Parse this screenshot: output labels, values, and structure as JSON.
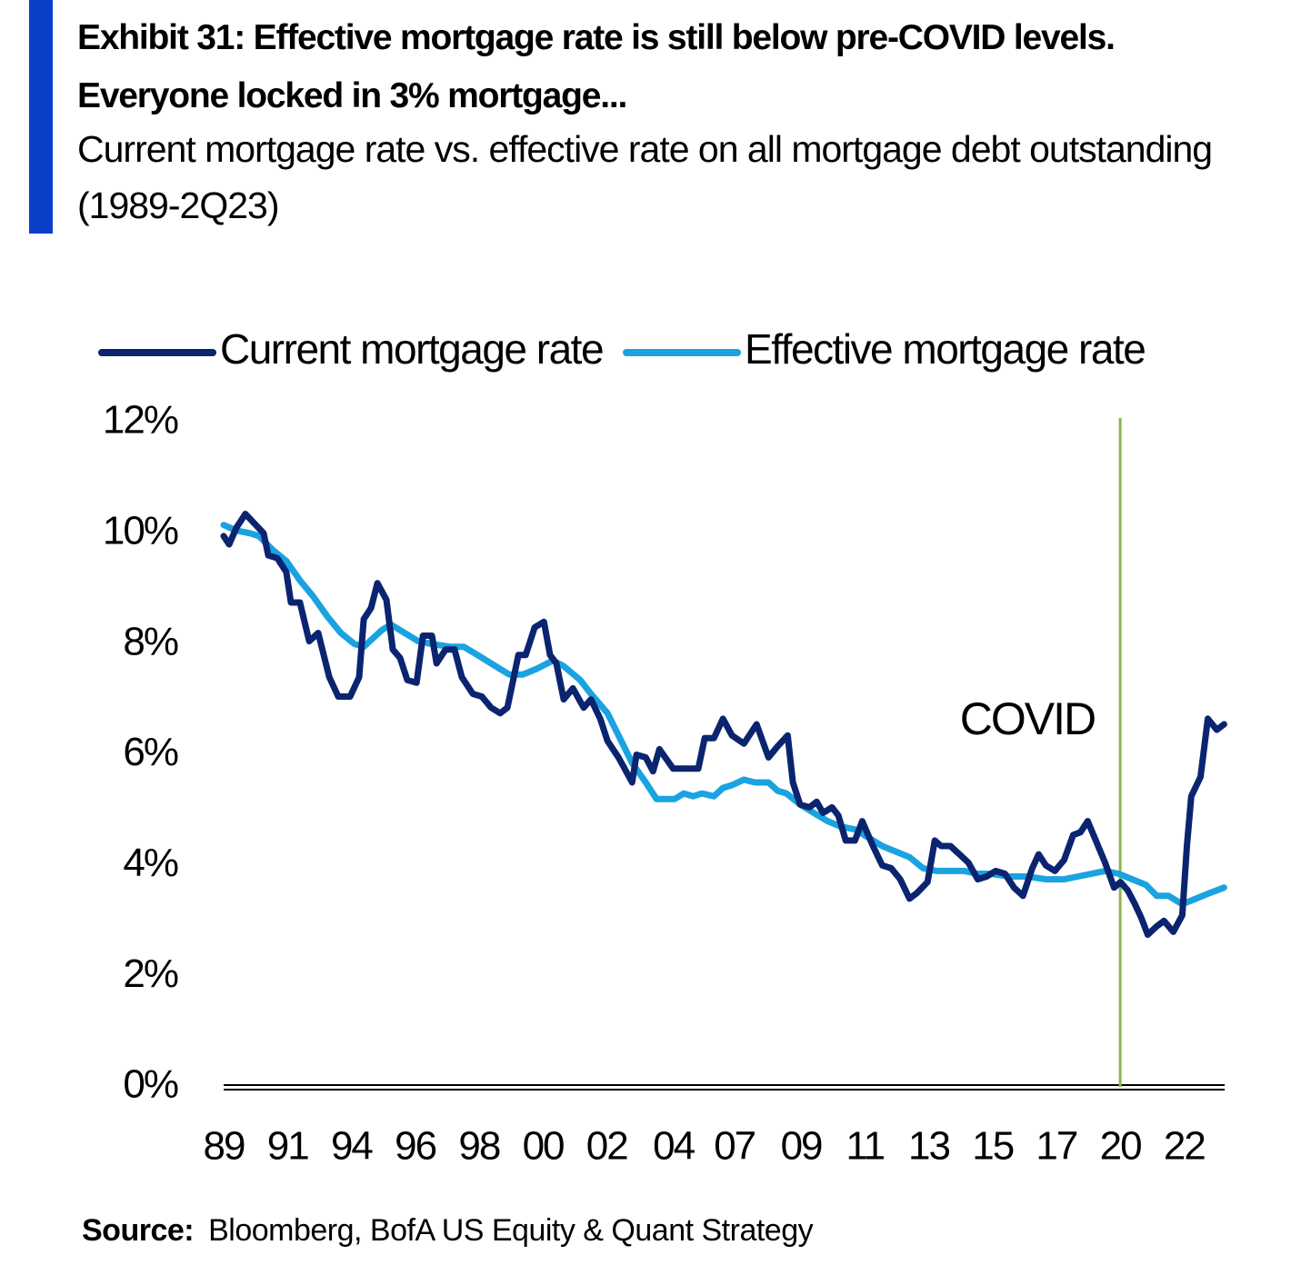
{
  "chart_data": {
    "type": "line",
    "title": "Exhibit 31: Effective mortgage rate is still below pre-COVID levels. Everyone locked in 3% mortgage...",
    "subtitle": "Current mortgage rate vs. effective rate on all mortgage debt outstanding (1989-2Q23)",
    "source_label": "Source:",
    "source": "Bloomberg, BofA US Equity & Quant Strategy",
    "xlim": [
      1989,
      2023.5
    ],
    "ylim": [
      0,
      12
    ],
    "yticks": [
      {
        "value": 0,
        "label": "0%"
      },
      {
        "value": 2,
        "label": "2%"
      },
      {
        "value": 4,
        "label": "4%"
      },
      {
        "value": 6,
        "label": "6%"
      },
      {
        "value": 8,
        "label": "8%"
      },
      {
        "value": 10,
        "label": "10%"
      },
      {
        "value": 12,
        "label": "12%"
      }
    ],
    "xticks": [
      {
        "value": 1989.0,
        "label": "89"
      },
      {
        "value": 1991.2,
        "label": "91"
      },
      {
        "value": 1993.4,
        "label": "94"
      },
      {
        "value": 1995.6,
        "label": "96"
      },
      {
        "value": 1997.8,
        "label": "98"
      },
      {
        "value": 2000.0,
        "label": "00"
      },
      {
        "value": 2002.2,
        "label": "02"
      },
      {
        "value": 2004.5,
        "label": "04"
      },
      {
        "value": 2006.6,
        "label": "07"
      },
      {
        "value": 2008.9,
        "label": "09"
      },
      {
        "value": 2011.1,
        "label": "11"
      },
      {
        "value": 2013.3,
        "label": "13"
      },
      {
        "value": 2015.5,
        "label": "15"
      },
      {
        "value": 2017.7,
        "label": "17"
      },
      {
        "value": 2019.9,
        "label": "20"
      },
      {
        "value": 2022.1,
        "label": "22"
      }
    ],
    "grid": false,
    "annotations": [
      {
        "text": "COVID",
        "x": 2019.9,
        "color": "#8db552"
      }
    ],
    "series": [
      {
        "name": "Current mortgage rate",
        "color": "#0a2470",
        "x": [
          1989.0,
          1989.19,
          1989.44,
          1989.75,
          1990.38,
          1990.54,
          1990.85,
          1991.16,
          1991.32,
          1991.63,
          1991.95,
          1992.26,
          1992.64,
          1992.95,
          1993.36,
          1993.67,
          1993.83,
          1994.08,
          1994.3,
          1994.61,
          1994.83,
          1995.08,
          1995.33,
          1995.65,
          1995.87,
          1996.18,
          1996.34,
          1996.65,
          1996.96,
          1997.21,
          1997.59,
          1997.9,
          1998.22,
          1998.53,
          1998.78,
          1999.16,
          1999.41,
          1999.72,
          2000.04,
          2000.25,
          2000.47,
          2000.72,
          2001.04,
          2001.41,
          2001.66,
          2001.98,
          2002.23,
          2002.61,
          2003.08,
          2003.23,
          2003.55,
          2003.8,
          2004.02,
          2004.49,
          2004.96,
          2005.36,
          2005.58,
          2005.9,
          2006.21,
          2006.52,
          2006.93,
          2007.37,
          2007.78,
          2008.09,
          2008.44,
          2008.62,
          2008.87,
          2009.19,
          2009.44,
          2009.66,
          2009.97,
          2010.19,
          2010.44,
          2010.76,
          2011.01,
          2011.38,
          2011.7,
          2012.01,
          2012.32,
          2012.64,
          2012.89,
          2013.26,
          2013.51,
          2013.73,
          2014.05,
          2014.36,
          2014.67,
          2014.99,
          2015.3,
          2015.61,
          2015.93,
          2016.24,
          2016.55,
          2016.87,
          2017.09,
          2017.34,
          2017.65,
          2017.97,
          2018.28,
          2018.53,
          2018.78,
          2019.06,
          2019.38,
          2019.69,
          2019.91,
          2020.16,
          2020.41,
          2020.63,
          2020.85,
          2021.16,
          2021.41,
          2021.73,
          2022.04,
          2022.2,
          2022.35,
          2022.67,
          2022.92,
          2023.23,
          2023.48
        ],
        "values": [
          9.95,
          9.8,
          10.1,
          10.35,
          10.0,
          9.6,
          9.55,
          9.3,
          8.75,
          8.75,
          8.05,
          8.2,
          7.4,
          7.05,
          7.05,
          7.4,
          8.45,
          8.65,
          9.1,
          8.8,
          7.9,
          7.75,
          7.35,
          7.3,
          8.15,
          8.15,
          7.65,
          7.9,
          7.9,
          7.4,
          7.1,
          7.05,
          6.85,
          6.75,
          6.85,
          7.8,
          7.8,
          8.3,
          8.4,
          7.8,
          7.65,
          7.0,
          7.2,
          6.85,
          7.0,
          6.65,
          6.25,
          5.95,
          5.5,
          6.0,
          5.95,
          5.7,
          6.1,
          5.75,
          5.75,
          5.75,
          6.3,
          6.3,
          6.65,
          6.35,
          6.2,
          6.55,
          5.95,
          6.15,
          6.35,
          5.5,
          5.1,
          5.05,
          5.15,
          4.95,
          5.05,
          4.9,
          4.45,
          4.45,
          4.8,
          4.35,
          4.0,
          3.95,
          3.75,
          3.4,
          3.5,
          3.7,
          4.45,
          4.35,
          4.35,
          4.2,
          4.05,
          3.75,
          3.8,
          3.9,
          3.85,
          3.6,
          3.45,
          3.95,
          4.2,
          4.0,
          3.9,
          4.1,
          4.55,
          4.6,
          4.8,
          4.45,
          4.05,
          3.6,
          3.7,
          3.55,
          3.3,
          3.05,
          2.75,
          2.9,
          3.0,
          2.8,
          3.1,
          4.35,
          5.25,
          5.6,
          6.65,
          6.45,
          6.55
        ]
      },
      {
        "name": "Effective mortgage rate",
        "color": "#1aa3e0",
        "x": [
          1989.0,
          1989.44,
          1989.91,
          1990.22,
          1990.69,
          1991.16,
          1991.63,
          1992.1,
          1992.57,
          1993.04,
          1993.51,
          1993.83,
          1994.14,
          1994.45,
          1994.77,
          1995.24,
          1995.71,
          1996.18,
          1996.81,
          1997.28,
          1997.75,
          1998.37,
          1998.84,
          1999.31,
          1999.78,
          2000.35,
          2000.72,
          2001.29,
          2001.66,
          2002.23,
          2002.61,
          2003.08,
          2003.55,
          2003.92,
          2004.55,
          2004.86,
          2005.18,
          2005.49,
          2005.9,
          2006.21,
          2006.52,
          2006.93,
          2007.31,
          2007.78,
          2008.09,
          2008.4,
          2008.87,
          2009.34,
          2009.82,
          2010.29,
          2010.76,
          2011.23,
          2011.7,
          2012.17,
          2012.64,
          2013.11,
          2013.58,
          2014.52,
          2014.99,
          2015.46,
          2016.08,
          2016.71,
          2017.34,
          2017.97,
          2018.44,
          2018.91,
          2019.38,
          2019.85,
          2020.32,
          2020.79,
          2021.16,
          2021.57,
          2022.04,
          2022.51,
          2022.98,
          2023.48
        ],
        "values": [
          10.15,
          10.05,
          10.0,
          9.95,
          9.7,
          9.5,
          9.15,
          8.85,
          8.5,
          8.2,
          8.0,
          7.95,
          8.1,
          8.25,
          8.35,
          8.2,
          8.05,
          8.0,
          7.95,
          7.95,
          7.8,
          7.6,
          7.45,
          7.45,
          7.55,
          7.7,
          7.6,
          7.35,
          7.1,
          6.75,
          6.35,
          5.85,
          5.5,
          5.2,
          5.2,
          5.3,
          5.25,
          5.3,
          5.25,
          5.4,
          5.45,
          5.55,
          5.5,
          5.5,
          5.35,
          5.3,
          5.1,
          4.95,
          4.8,
          4.7,
          4.65,
          4.5,
          4.35,
          4.25,
          4.15,
          3.95,
          3.9,
          3.9,
          3.85,
          3.85,
          3.8,
          3.8,
          3.75,
          3.75,
          3.8,
          3.85,
          3.9,
          3.85,
          3.75,
          3.65,
          3.45,
          3.45,
          3.3,
          3.4,
          3.5,
          3.6
        ]
      }
    ]
  }
}
